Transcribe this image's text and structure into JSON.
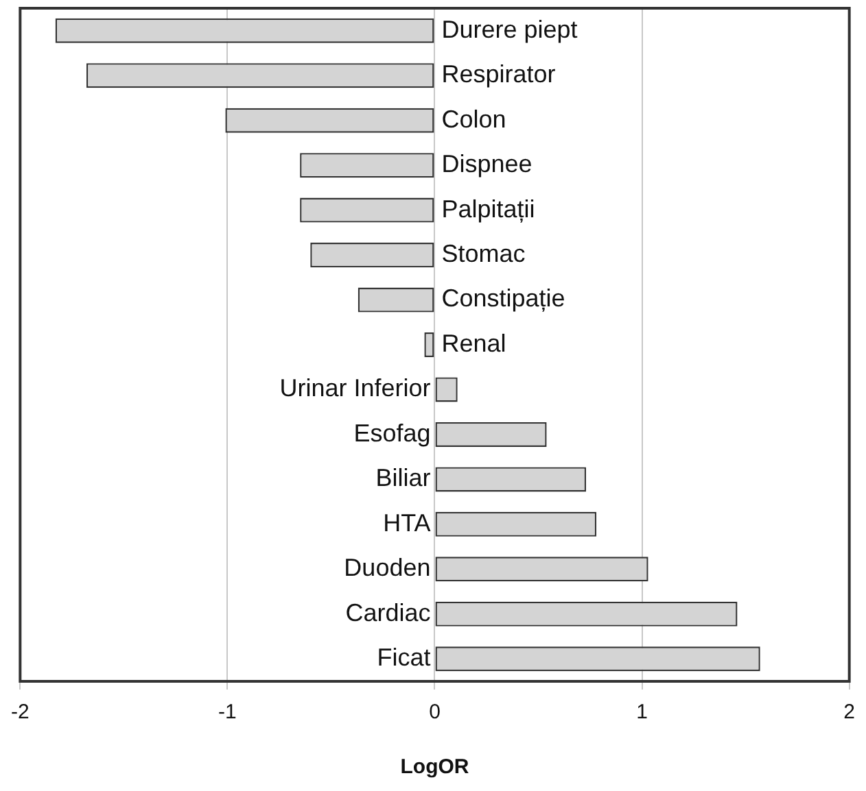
{
  "chart_data": {
    "type": "bar",
    "orientation": "horizontal",
    "xlabel": "LogOR",
    "categories": [
      "Durere piept",
      "Respirator",
      "Colon",
      "Dispnee",
      "Palpitații",
      "Stomac",
      "Constipație",
      "Renal",
      "Urinar Inferior",
      "Esofag",
      "Biliar",
      "HTA",
      "Duoden",
      "Cardiac",
      "Ficat"
    ],
    "values": [
      -1.83,
      -1.68,
      -1.01,
      -0.65,
      -0.65,
      -0.6,
      -0.37,
      -0.05,
      0.11,
      0.54,
      0.73,
      0.78,
      1.03,
      1.46,
      1.57
    ],
    "color": "#d4d4d4",
    "xlim": [
      -2,
      2
    ],
    "xticks": [
      -2,
      -1,
      0,
      1,
      2
    ],
    "grid": "x",
    "legend": false
  }
}
